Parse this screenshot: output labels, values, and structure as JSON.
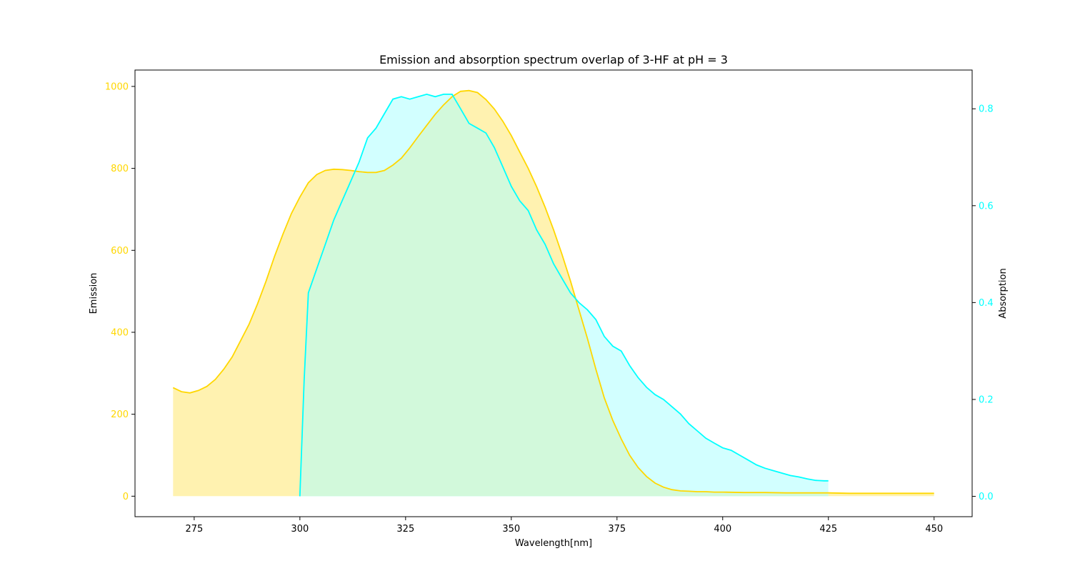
{
  "chart_data": {
    "type": "area",
    "title": "Emission and absorption spectrum overlap of 3-HF at pH = 3",
    "xlabel": "Wavelength[nm]",
    "ylabel_left": "Emission",
    "ylabel_right": "Absorption",
    "xlim": [
      261,
      459
    ],
    "ylim_left": [
      -50,
      1040
    ],
    "ylim_right": [
      -0.042,
      0.88
    ],
    "x_ticks": [
      275,
      300,
      325,
      350,
      375,
      400,
      425,
      450
    ],
    "y_left_ticks": [
      0,
      200,
      400,
      600,
      800,
      1000
    ],
    "y_right_ticks": [
      0.0,
      0.2,
      0.4,
      0.6,
      0.8
    ],
    "grid": false,
    "series": [
      {
        "axis": "left",
        "color": "#ffd700",
        "fill": "#fff2b0",
        "x": [
          270,
          272,
          274,
          276,
          278,
          280,
          282,
          284,
          286,
          288,
          290,
          292,
          294,
          296,
          298,
          300,
          302,
          304,
          306,
          308,
          310,
          312,
          314,
          316,
          318,
          320,
          322,
          324,
          326,
          328,
          330,
          332,
          334,
          336,
          338,
          340,
          342,
          344,
          346,
          348,
          350,
          352,
          354,
          356,
          358,
          360,
          362,
          364,
          366,
          368,
          370,
          372,
          374,
          376,
          378,
          380,
          382,
          384,
          386,
          388,
          390,
          392,
          394,
          396,
          398,
          400,
          405,
          410,
          415,
          420,
          425,
          430,
          435,
          440,
          445,
          450
        ],
        "values": [
          265,
          255,
          252,
          258,
          268,
          285,
          310,
          340,
          380,
          420,
          470,
          525,
          585,
          640,
          690,
          730,
          765,
          785,
          795,
          798,
          797,
          795,
          792,
          790,
          790,
          795,
          808,
          825,
          850,
          878,
          905,
          932,
          955,
          975,
          988,
          990,
          985,
          968,
          945,
          915,
          880,
          840,
          800,
          755,
          705,
          650,
          590,
          525,
          455,
          385,
          310,
          240,
          185,
          140,
          100,
          70,
          48,
          32,
          22,
          16,
          13,
          12,
          11,
          11,
          10,
          10,
          9,
          9,
          8,
          8,
          8,
          7,
          7,
          7,
          7,
          7
        ]
      },
      {
        "axis": "right",
        "color": "#00ffff",
        "fill": "#adffff",
        "x": [
          300,
          301,
          302,
          304,
          306,
          308,
          310,
          312,
          314,
          316,
          318,
          320,
          322,
          324,
          326,
          328,
          330,
          332,
          334,
          336,
          338,
          340,
          342,
          344,
          346,
          348,
          350,
          352,
          354,
          356,
          358,
          360,
          362,
          364,
          366,
          368,
          370,
          372,
          374,
          376,
          378,
          380,
          382,
          384,
          386,
          388,
          390,
          392,
          394,
          396,
          398,
          400,
          402,
          404,
          406,
          408,
          410,
          412,
          414,
          416,
          418,
          420,
          422,
          424,
          425
        ],
        "values": [
          0.0,
          0.24,
          0.42,
          0.47,
          0.52,
          0.57,
          0.61,
          0.65,
          0.69,
          0.74,
          0.76,
          0.79,
          0.82,
          0.825,
          0.82,
          0.825,
          0.83,
          0.825,
          0.83,
          0.83,
          0.8,
          0.77,
          0.76,
          0.75,
          0.72,
          0.68,
          0.64,
          0.61,
          0.59,
          0.55,
          0.52,
          0.48,
          0.45,
          0.42,
          0.4,
          0.385,
          0.365,
          0.33,
          0.31,
          0.3,
          0.27,
          0.245,
          0.225,
          0.21,
          0.2,
          0.185,
          0.17,
          0.15,
          0.135,
          0.12,
          0.11,
          0.1,
          0.095,
          0.085,
          0.075,
          0.065,
          0.058,
          0.053,
          0.048,
          0.043,
          0.04,
          0.036,
          0.033,
          0.032,
          0.032
        ]
      }
    ]
  }
}
